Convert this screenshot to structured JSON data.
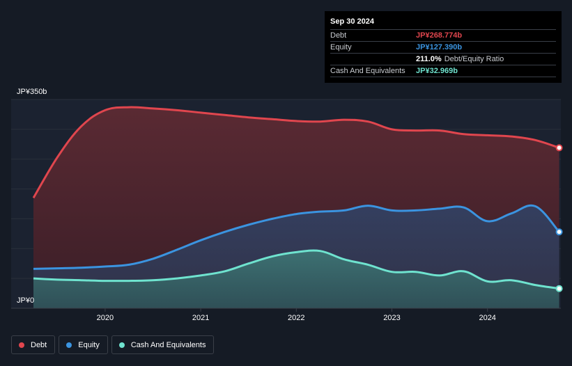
{
  "tooltip": {
    "date": "Sep 30 2024",
    "rows": [
      {
        "name": "Debt",
        "value": "JP¥268.774b",
        "color": "#e0464e",
        "suffix": ""
      },
      {
        "name": "Equity",
        "value": "JP¥127.390b",
        "color": "#3b94e0",
        "suffix": ""
      },
      {
        "name": "",
        "value": "211.0%",
        "color": "#ffffff",
        "suffix": "Debt/Equity Ratio"
      },
      {
        "name": "Cash And Equivalents",
        "value": "JP¥32.969b",
        "color": "#6fe3cf",
        "suffix": ""
      }
    ]
  },
  "legend": [
    {
      "label": "Debt",
      "color": "#e0464e"
    },
    {
      "label": "Equity",
      "color": "#3b94e0"
    },
    {
      "label": "Cash And Equivalents",
      "color": "#6fe3cf"
    }
  ],
  "chart_data": {
    "type": "area",
    "ylim": [
      0,
      350
    ],
    "y_top_label": "JP¥350b",
    "y_bottom_label": "JP¥0",
    "x_ticks": [
      "2020",
      "2021",
      "2022",
      "2023",
      "2024"
    ],
    "x_tick_values": [
      2020.0,
      2021.0,
      2022.0,
      2023.0,
      2024.0
    ],
    "xlim": [
      2019.23,
      2024.75
    ],
    "grid": true,
    "series": [
      {
        "name": "Debt",
        "color": "#e0464e",
        "x": [
          2019.25,
          2019.5,
          2019.75,
          2020.0,
          2020.25,
          2020.5,
          2020.75,
          2021.0,
          2021.25,
          2021.5,
          2021.75,
          2022.0,
          2022.25,
          2022.5,
          2022.75,
          2023.0,
          2023.25,
          2023.5,
          2023.75,
          2024.0,
          2024.25,
          2024.5,
          2024.75
        ],
        "values": [
          185,
          253,
          305,
          332,
          337,
          335,
          332,
          328,
          324,
          320,
          317,
          314,
          313,
          316,
          313,
          300,
          298,
          298,
          292,
          290,
          288,
          282,
          269
        ]
      },
      {
        "name": "Equity",
        "color": "#3b94e0",
        "x": [
          2019.25,
          2019.5,
          2019.75,
          2020.0,
          2020.25,
          2020.5,
          2020.75,
          2021.0,
          2021.25,
          2021.5,
          2021.75,
          2022.0,
          2022.25,
          2022.5,
          2022.75,
          2023.0,
          2023.25,
          2023.5,
          2023.75,
          2024.0,
          2024.25,
          2024.5,
          2024.75
        ],
        "values": [
          66,
          67,
          68,
          70,
          73,
          83,
          98,
          114,
          128,
          140,
          150,
          158,
          162,
          164,
          172,
          164,
          164,
          167,
          169,
          146,
          159,
          171,
          128
        ]
      },
      {
        "name": "Cash And Equivalents",
        "color": "#6fe3cf",
        "x": [
          2019.25,
          2019.5,
          2019.75,
          2020.0,
          2020.25,
          2020.5,
          2020.75,
          2021.0,
          2021.25,
          2021.5,
          2021.75,
          2022.0,
          2022.25,
          2022.5,
          2022.75,
          2023.0,
          2023.25,
          2023.5,
          2023.75,
          2024.0,
          2024.25,
          2024.5,
          2024.75
        ],
        "values": [
          50,
          48,
          47,
          46,
          46,
          47,
          50,
          55,
          62,
          75,
          87,
          94,
          96,
          82,
          73,
          61,
          61,
          55,
          62,
          45,
          47,
          39,
          33
        ]
      }
    ]
  }
}
